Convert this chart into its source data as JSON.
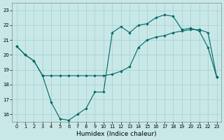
{
  "xlabel": "Humidex (Indice chaleur)",
  "background_color": "#c8e8e8",
  "grid_color": "#a8cccc",
  "line_color": "#006666",
  "xlim": [
    -0.5,
    23.5
  ],
  "ylim": [
    15.5,
    23.5
  ],
  "x_ticks": [
    0,
    1,
    2,
    3,
    4,
    5,
    6,
    7,
    8,
    9,
    10,
    11,
    12,
    13,
    14,
    15,
    16,
    17,
    18,
    19,
    20,
    21,
    22,
    23
  ],
  "y_ticks": [
    16,
    17,
    18,
    19,
    20,
    21,
    22,
    23
  ],
  "curve1_x": [
    0,
    1,
    2,
    3,
    4,
    5,
    6,
    7,
    8,
    9,
    10,
    11,
    12,
    13,
    14,
    15,
    16,
    17,
    18,
    19,
    20,
    21,
    22,
    23
  ],
  "curve1_y": [
    20.6,
    20.0,
    19.6,
    18.6,
    16.8,
    15.7,
    15.6,
    16.0,
    16.4,
    17.5,
    17.5,
    21.5,
    21.9,
    21.5,
    22.0,
    22.1,
    22.5,
    22.7,
    22.6,
    21.7,
    21.8,
    21.6,
    20.5,
    18.5
  ],
  "curve2_x": [
    0,
    1,
    2,
    3,
    4,
    5,
    6,
    7,
    8,
    9,
    10,
    11,
    12,
    13,
    14,
    15,
    16,
    17,
    18,
    19,
    20,
    21,
    22,
    23
  ],
  "curve2_y": [
    20.6,
    20.0,
    19.6,
    18.6,
    18.6,
    18.6,
    18.6,
    18.6,
    18.6,
    18.6,
    18.6,
    18.7,
    18.9,
    19.2,
    20.5,
    21.0,
    21.2,
    21.3,
    21.5,
    21.6,
    21.7,
    21.7,
    21.5,
    18.5
  ]
}
